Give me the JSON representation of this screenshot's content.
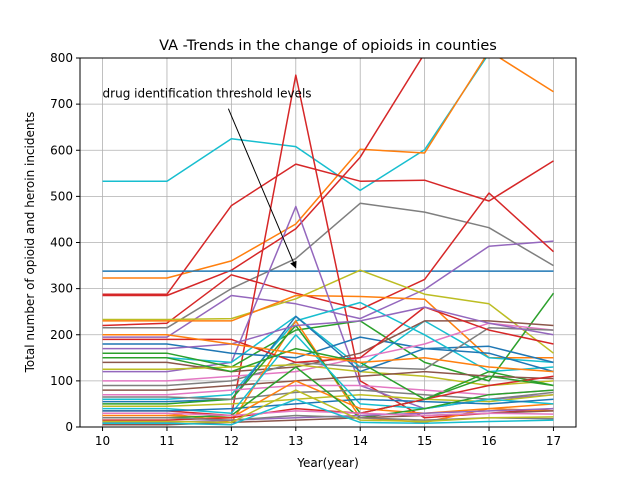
{
  "chart_data": {
    "type": "line",
    "title": "VA -Trends in the change of opioids in counties",
    "xlabel": "Year(year)",
    "ylabel": "Total number of opioid and heroin incidents",
    "x": [
      10,
      11,
      12,
      13,
      14,
      15,
      16,
      17
    ],
    "xlim": [
      9.65,
      17.35
    ],
    "ylim": [
      0,
      800
    ],
    "xticks": [
      "10",
      "11",
      "12",
      "13",
      "14",
      "15",
      "16",
      "17"
    ],
    "yticks": [
      "0",
      "100",
      "200",
      "300",
      "400",
      "500",
      "600",
      "700",
      "800"
    ],
    "grid": true,
    "annotation": {
      "text": "drug identification threshold levels",
      "text_at": [
        10,
        710
      ],
      "arrow_from": [
        12,
        690
      ],
      "arrow_to": [
        13,
        345
      ]
    },
    "series": [
      {
        "color": "#17becf",
        "values": [
          533,
          533,
          625,
          608,
          513,
          601,
          810,
          820
        ]
      },
      {
        "color": "#ff7f0e",
        "values": [
          323,
          323,
          360,
          440,
          602,
          594,
          815,
          727
        ]
      },
      {
        "color": "#d62728",
        "values": [
          288,
          288,
          480,
          570,
          533,
          535,
          490,
          577
        ]
      },
      {
        "color": "#d62728",
        "values": [
          285,
          285,
          340,
          430,
          585,
          810,
          820,
          820
        ]
      },
      {
        "color": "#7f7f7f",
        "values": [
          215,
          215,
          300,
          365,
          485,
          466,
          432,
          350
        ]
      },
      {
        "color": "#1f77b4",
        "values": [
          338,
          338,
          338,
          338,
          338,
          338,
          338,
          338
        ]
      },
      {
        "color": "#9467bd",
        "values": [
          195,
          195,
          285,
          267,
          235,
          298,
          392,
          403
        ]
      },
      {
        "color": "#d62728",
        "values": [
          220,
          225,
          330,
          290,
          255,
          320,
          507,
          380
        ]
      },
      {
        "color": "#bcbd22",
        "values": [
          233,
          233,
          235,
          278,
          340,
          288,
          267,
          160
        ]
      },
      {
        "color": "#ff7f0e",
        "values": [
          230,
          230,
          230,
          285,
          283,
          277,
          150,
          150
        ]
      },
      {
        "color": "#d62728",
        "values": [
          35,
          35,
          25,
          763,
          100,
          20,
          30,
          40
        ]
      },
      {
        "color": "#9467bd",
        "values": [
          120,
          120,
          140,
          478,
          90,
          40,
          60,
          70
        ]
      },
      {
        "color": "#17becf",
        "values": [
          150,
          150,
          140,
          240,
          130,
          230,
          150,
          140
        ]
      },
      {
        "color": "#2ca02c",
        "values": [
          160,
          160,
          130,
          210,
          230,
          140,
          100,
          290
        ]
      },
      {
        "color": "#1f77b4",
        "values": [
          180,
          180,
          160,
          150,
          195,
          170,
          175,
          140
        ]
      },
      {
        "color": "#8c564b",
        "values": [
          140,
          140,
          120,
          130,
          160,
          230,
          230,
          220
        ]
      },
      {
        "color": "#e377c2",
        "values": [
          100,
          100,
          110,
          120,
          150,
          180,
          225,
          210
        ]
      },
      {
        "color": "#7f7f7f",
        "values": [
          90,
          90,
          100,
          140,
          130,
          125,
          215,
          210
        ]
      },
      {
        "color": "#bcbd22",
        "values": [
          125,
          125,
          130,
          135,
          120,
          110,
          90,
          100
        ]
      },
      {
        "color": "#17becf",
        "values": [
          60,
          60,
          70,
          230,
          270,
          200,
          120,
          130
        ]
      },
      {
        "color": "#1f77b4",
        "values": [
          55,
          55,
          60,
          240,
          120,
          170,
          160,
          120
        ]
      },
      {
        "color": "#ff7f0e",
        "values": [
          30,
          30,
          10,
          230,
          20,
          10,
          40,
          50
        ]
      },
      {
        "color": "#2ca02c",
        "values": [
          50,
          50,
          60,
          220,
          30,
          60,
          120,
          90
        ]
      },
      {
        "color": "#d62728",
        "values": [
          190,
          190,
          190,
          140,
          150,
          260,
          210,
          180
        ]
      },
      {
        "color": "#9467bd",
        "values": [
          170,
          170,
          180,
          220,
          230,
          260,
          225,
          200
        ]
      },
      {
        "color": "#8c564b",
        "values": [
          80,
          80,
          90,
          100,
          110,
          120,
          110,
          105
        ]
      },
      {
        "color": "#e377c2",
        "values": [
          70,
          70,
          80,
          90,
          90,
          80,
          70,
          80
        ]
      },
      {
        "color": "#7f7f7f",
        "values": [
          65,
          65,
          60,
          75,
          80,
          70,
          60,
          75
        ]
      },
      {
        "color": "#bcbd22",
        "values": [
          45,
          45,
          50,
          60,
          70,
          60,
          55,
          70
        ]
      },
      {
        "color": "#17becf",
        "values": [
          40,
          40,
          30,
          200,
          50,
          40,
          60,
          50
        ]
      },
      {
        "color": "#1f77b4",
        "values": [
          35,
          35,
          40,
          50,
          60,
          55,
          50,
          60
        ]
      },
      {
        "color": "#ff7f0e",
        "values": [
          25,
          25,
          20,
          100,
          40,
          30,
          40,
          35
        ]
      },
      {
        "color": "#2ca02c",
        "values": [
          20,
          20,
          25,
          130,
          20,
          40,
          70,
          80
        ]
      },
      {
        "color": "#d62728",
        "values": [
          15,
          15,
          20,
          40,
          30,
          60,
          90,
          110
        ]
      },
      {
        "color": "#9467bd",
        "values": [
          10,
          10,
          15,
          20,
          25,
          30,
          35,
          40
        ]
      },
      {
        "color": "#8c564b",
        "values": [
          5,
          5,
          10,
          15,
          20,
          25,
          30,
          35
        ]
      },
      {
        "color": "#e377c2",
        "values": [
          30,
          30,
          25,
          35,
          30,
          25,
          30,
          28
        ]
      },
      {
        "color": "#7f7f7f",
        "values": [
          20,
          20,
          15,
          25,
          20,
          15,
          20,
          18
        ]
      },
      {
        "color": "#bcbd22",
        "values": [
          12,
          12,
          10,
          80,
          15,
          12,
          20,
          22
        ]
      },
      {
        "color": "#17becf",
        "values": [
          8,
          8,
          5,
          60,
          10,
          8,
          12,
          15
        ]
      },
      {
        "color": "#2ca02c",
        "values": [
          150,
          150,
          120,
          170,
          140,
          60,
          110,
          90
        ]
      },
      {
        "color": "#ff7f0e",
        "values": [
          200,
          200,
          180,
          160,
          140,
          150,
          130,
          120
        ]
      }
    ]
  }
}
